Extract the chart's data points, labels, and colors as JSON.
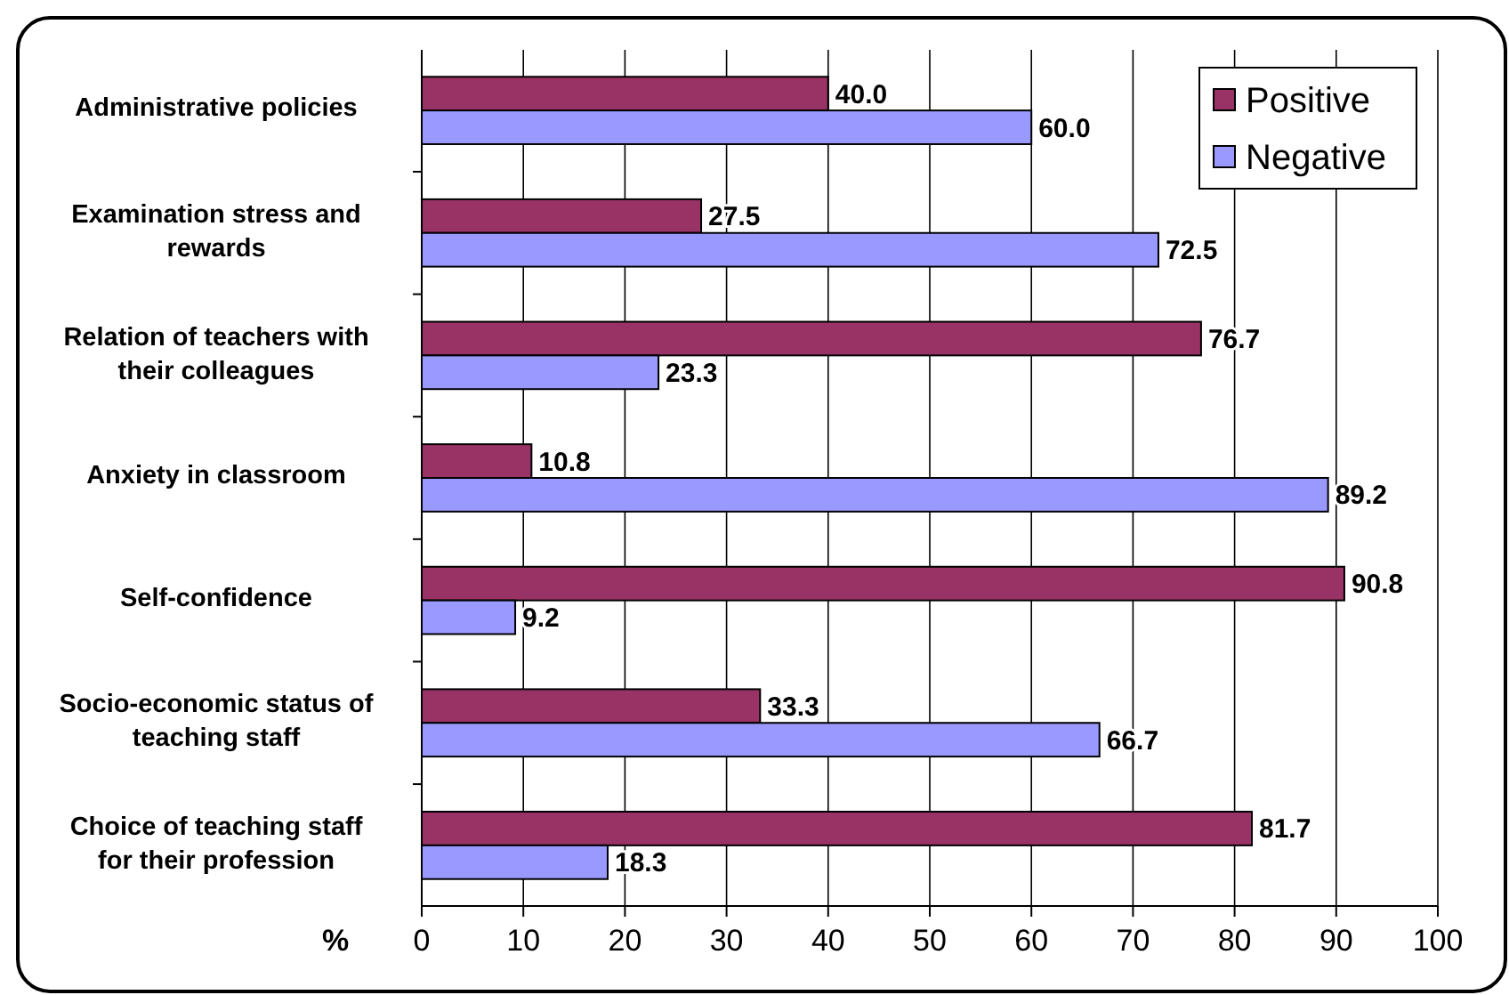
{
  "chart_data": {
    "type": "bar",
    "orientation": "horizontal",
    "xlabel": "%",
    "categories": [
      "Administrative policies",
      "Examination stress and rewards",
      "Relation of teachers with their colleagues",
      "Anxiety in classroom",
      "Self-confidence",
      "Socio-economic status of teaching staff",
      "Choice of teaching staff for their profession"
    ],
    "series": [
      {
        "name": "Positive",
        "color": "#993366",
        "values": [
          40.0,
          27.5,
          76.7,
          10.8,
          90.8,
          33.3,
          81.7
        ],
        "value_labels": [
          "40.0",
          "27.5",
          "76.7",
          "10.8",
          "90.8",
          "33.3",
          "81.7"
        ]
      },
      {
        "name": "Negative",
        "color": "#9999ff",
        "values": [
          60.0,
          72.5,
          23.3,
          89.2,
          9.2,
          66.7,
          18.3
        ],
        "value_labels": [
          "60.0",
          "72.5",
          "23.3",
          "89.2",
          "9.2",
          "66.7",
          "18.3"
        ]
      }
    ],
    "xlim": [
      0,
      100
    ],
    "xticks": [
      0,
      10,
      20,
      30,
      40,
      50,
      60,
      70,
      80,
      90,
      100
    ],
    "grid": "x",
    "legend": "top right"
  }
}
